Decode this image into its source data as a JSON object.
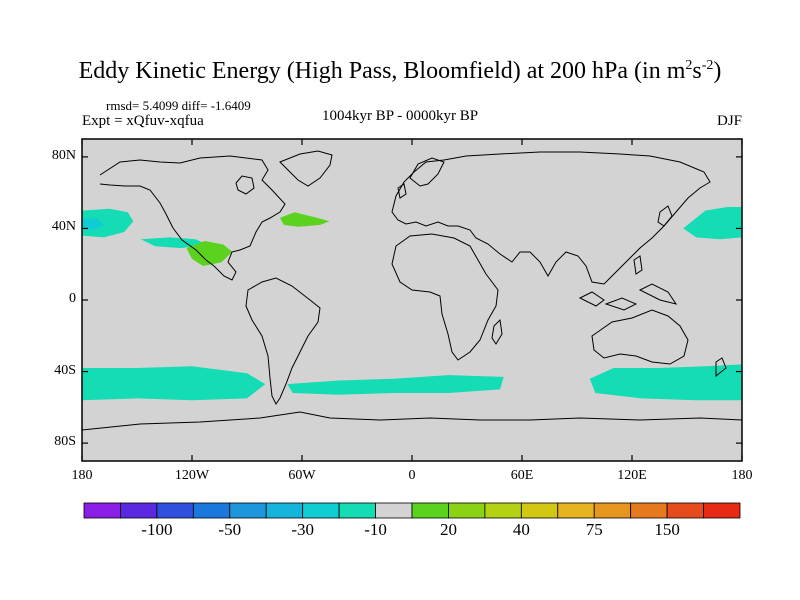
{
  "title": {
    "text": "Eddy Kinetic Energy (High Pass, Bloomfield) at 200 hPa (in m",
    "sup1": "2",
    "mid": "s",
    "sup2": "-2",
    "end": ")"
  },
  "stats": "rmsd= 5.4099 diff= -1.6409",
  "expt": "Expt = xQfuv-xqfua",
  "period": "1004kyr BP - 0000kyr BP",
  "season": "DJF",
  "chart_data": {
    "type": "heatmap",
    "projection": "cylindrical-equidistant",
    "lon_range": [
      -180,
      180
    ],
    "lat_range": [
      -90,
      90
    ],
    "x_ticks": [
      {
        "value": -180,
        "label": "180"
      },
      {
        "value": -120,
        "label": "120W"
      },
      {
        "value": -60,
        "label": "60W"
      },
      {
        "value": 0,
        "label": "0"
      },
      {
        "value": 60,
        "label": "60E"
      },
      {
        "value": 120,
        "label": "120E"
      },
      {
        "value": 180,
        "label": "180"
      }
    ],
    "y_ticks": [
      {
        "value": 80,
        "label": "80N"
      },
      {
        "value": 40,
        "label": "40N"
      },
      {
        "value": 0,
        "label": "0"
      },
      {
        "value": -40,
        "label": "40S"
      },
      {
        "value": -80,
        "label": "80S"
      }
    ],
    "background_color": "#d3d3d3",
    "colorbar": {
      "colors": [
        "#8a1ee6",
        "#5a28e0",
        "#2f50dc",
        "#1a78dc",
        "#1e96dc",
        "#14b4dc",
        "#0fcdd2",
        "#14dcb4",
        "#d3d3d3",
        "#5ad21e",
        "#8cd214",
        "#b4d214",
        "#d2c814",
        "#e6b41e",
        "#e6961e",
        "#e6781e",
        "#e64b1e",
        "#e62814"
      ],
      "labels": [
        {
          "boundary": 2,
          "text": "-100"
        },
        {
          "boundary": 4,
          "text": "-50"
        },
        {
          "boundary": 6,
          "text": "-30"
        },
        {
          "boundary": 8,
          "text": "-10"
        },
        {
          "boundary": 10,
          "text": "20"
        },
        {
          "boundary": 12,
          "text": "40"
        },
        {
          "boundary": 14,
          "text": "75"
        },
        {
          "boundary": 16,
          "text": "150"
        }
      ]
    },
    "regions": [
      {
        "name": "north-pacific-west",
        "class": "-20 to -10",
        "color": "#14dcb4",
        "points": [
          [
            -180,
            50
          ],
          [
            -165,
            51
          ],
          [
            -155,
            49
          ],
          [
            -152,
            44
          ],
          [
            -157,
            38
          ],
          [
            -168,
            35
          ],
          [
            -180,
            36
          ]
        ]
      },
      {
        "name": "north-pacific-west-core",
        "class": "-30 to -20",
        "color": "#0fcdd2",
        "points": [
          [
            -180,
            45
          ],
          [
            -172,
            46
          ],
          [
            -168,
            42
          ],
          [
            -174,
            39
          ],
          [
            -180,
            40
          ]
        ]
      },
      {
        "name": "north-pacific-east",
        "class": "-20 to -10",
        "color": "#14dcb4",
        "points": [
          [
            148,
            40
          ],
          [
            160,
            50
          ],
          [
            172,
            52
          ],
          [
            180,
            52
          ],
          [
            180,
            35
          ],
          [
            168,
            34
          ],
          [
            155,
            35
          ]
        ]
      },
      {
        "name": "northeast-pacific-band",
        "class": "-20 to -10",
        "color": "#14dcb4",
        "points": [
          [
            -148,
            34
          ],
          [
            -132,
            35
          ],
          [
            -118,
            34
          ],
          [
            -112,
            31
          ],
          [
            -126,
            29
          ],
          [
            -140,
            30
          ]
        ]
      },
      {
        "name": "southwest-usa-green",
        "class": "10 to 20",
        "color": "#5ad21e",
        "points": [
          [
            -123,
            29
          ],
          [
            -113,
            33
          ],
          [
            -103,
            31
          ],
          [
            -98,
            27
          ],
          [
            -104,
            21
          ],
          [
            -114,
            19
          ],
          [
            -120,
            23
          ]
        ]
      },
      {
        "name": "north-atlantic-green",
        "class": "10 to 20",
        "color": "#5ad21e",
        "points": [
          [
            -72,
            46
          ],
          [
            -64,
            49
          ],
          [
            -52,
            46
          ],
          [
            -45,
            44
          ],
          [
            -50,
            42
          ],
          [
            -62,
            41
          ],
          [
            -70,
            42
          ]
        ]
      },
      {
        "name": "southern-ocean-pacific",
        "class": "-20 to -10",
        "color": "#14dcb4",
        "points": [
          [
            -180,
            -38
          ],
          [
            -150,
            -38
          ],
          [
            -120,
            -37
          ],
          [
            -90,
            -41
          ],
          [
            -80,
            -47
          ],
          [
            -90,
            -55
          ],
          [
            -120,
            -56
          ],
          [
            -150,
            -55
          ],
          [
            -180,
            -56
          ]
        ]
      },
      {
        "name": "southern-ocean-atlantic",
        "class": "-20 to -10",
        "color": "#14dcb4",
        "points": [
          [
            -68,
            -47
          ],
          [
            -40,
            -45
          ],
          [
            -10,
            -44
          ],
          [
            20,
            -42
          ],
          [
            50,
            -43
          ],
          [
            48,
            -50
          ],
          [
            20,
            -52
          ],
          [
            -10,
            -52
          ],
          [
            -40,
            -53
          ],
          [
            -65,
            -52
          ]
        ]
      },
      {
        "name": "southern-ocean-indian",
        "class": "-20 to -10",
        "color": "#14dcb4",
        "points": [
          [
            97,
            -44
          ],
          [
            110,
            -38
          ],
          [
            135,
            -38
          ],
          [
            160,
            -37
          ],
          [
            180,
            -36
          ],
          [
            180,
            -56
          ],
          [
            155,
            -56
          ],
          [
            125,
            -55
          ],
          [
            100,
            -52
          ]
        ]
      }
    ]
  }
}
